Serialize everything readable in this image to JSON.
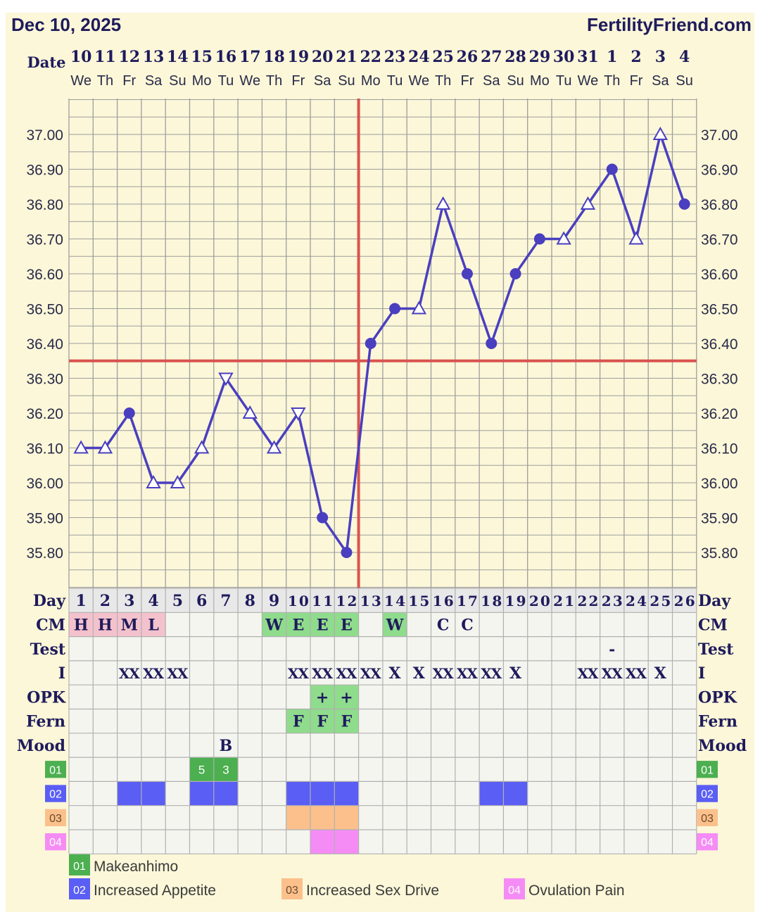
{
  "header": {
    "date": "Dec 10, 2025",
    "site": "FertilityFriend.com"
  },
  "row_labels": {
    "date": "Date",
    "day": "Day",
    "cm": "CM",
    "test": "Test",
    "intercourse": "I",
    "opk": "OPK",
    "fern": "Fern",
    "mood": "Mood"
  },
  "colors": {
    "background": "#fbf7d8",
    "grid": "#9e9e9e",
    "line": "#4a3fbf",
    "coverline": "#d9534f",
    "ovulation_line": "#d9534f",
    "pink_cell": "#f4c2cc",
    "green_cell": "#8fdc8c",
    "symptom_01": "#4caf50",
    "symptom_02": "#5a5ef5",
    "symptom_03": "#fcc08c",
    "symptom_04": "#f58cf5",
    "text": "#1f1b5c"
  },
  "chart_data": {
    "type": "line",
    "title": "",
    "ylabel": "",
    "ylim": [
      35.7,
      37.1
    ],
    "y_ticks": [
      "37.00",
      "36.90",
      "36.80",
      "36.70",
      "36.60",
      "36.50",
      "36.40",
      "36.30",
      "36.20",
      "36.10",
      "36.00",
      "35.90",
      "35.80"
    ],
    "dates": [
      "10",
      "11",
      "12",
      "13",
      "14",
      "15",
      "16",
      "17",
      "18",
      "19",
      "20",
      "21",
      "22",
      "23",
      "24",
      "25",
      "26",
      "27",
      "28",
      "29",
      "30",
      "31",
      "1",
      "2",
      "3",
      "4"
    ],
    "weekdays": [
      "We",
      "Th",
      "Fr",
      "Sa",
      "Su",
      "Mo",
      "Tu",
      "We",
      "Th",
      "Fr",
      "Sa",
      "Su",
      "Mo",
      "Tu",
      "We",
      "Th",
      "Fr",
      "Sa",
      "Su",
      "Mo",
      "Tu",
      "We",
      "Th",
      "Fr",
      "Sa",
      "Su"
    ],
    "days": [
      "1",
      "2",
      "3",
      "4",
      "5",
      "6",
      "7",
      "8",
      "9",
      "10",
      "11",
      "12",
      "13",
      "14",
      "15",
      "16",
      "17",
      "18",
      "19",
      "20",
      "21",
      "22",
      "23",
      "24",
      "25",
      "26"
    ],
    "series": [
      {
        "values": [
          36.1,
          36.1,
          36.2,
          36.0,
          36.0,
          36.1,
          36.3,
          36.2,
          36.1,
          36.2,
          35.9,
          35.8,
          36.4,
          36.5,
          36.5,
          36.8,
          36.6,
          36.4,
          36.6,
          36.7,
          36.7,
          36.8,
          36.9,
          36.7,
          37.0,
          36.8
        ],
        "markers": [
          "triangle-up",
          "triangle-up",
          "circle",
          "triangle-up",
          "triangle-up",
          "triangle-up",
          "triangle-down",
          "triangle-up",
          "triangle-up",
          "triangle-down",
          "circle",
          "circle",
          "circle",
          "circle",
          "triangle-up",
          "triangle-up",
          "circle",
          "circle",
          "circle",
          "circle",
          "triangle-up",
          "triangle-up",
          "circle",
          "triangle-up",
          "triangle-up",
          "circle"
        ]
      }
    ],
    "coverline": 36.35,
    "ovulation_day": 12
  },
  "rows": {
    "cm": [
      "H",
      "H",
      "M",
      "L",
      "",
      "",
      "",
      "",
      "W",
      "E",
      "E",
      "E",
      "",
      "W",
      "",
      "C",
      "C",
      "",
      "",
      "",
      "",
      "",
      "",
      "",
      "",
      ""
    ],
    "cm_colors": [
      "pink",
      "pink",
      "pink",
      "pink",
      "",
      "",
      "",
      "",
      "green",
      "green",
      "green",
      "green",
      "",
      "green",
      "",
      "",
      "",
      "",
      "",
      "",
      "",
      "",
      "",
      "",
      "",
      ""
    ],
    "test": [
      "",
      "",
      "",
      "",
      "",
      "",
      "",
      "",
      "",
      "",
      "",
      "",
      "",
      "",
      "",
      "",
      "",
      "",
      "",
      "",
      "",
      "",
      "-",
      "",
      "",
      ""
    ],
    "intercourse": [
      "",
      "",
      "XX",
      "XX",
      "XX",
      "",
      "",
      "",
      "",
      "XX",
      "XX",
      "XX",
      "XX",
      "X",
      "X",
      "XX",
      "XX",
      "XX",
      "X",
      "",
      "",
      "XX",
      "XX",
      "XX",
      "X",
      ""
    ],
    "opk": [
      "",
      "",
      "",
      "",
      "",
      "",
      "",
      "",
      "",
      "",
      "+",
      "+",
      "",
      "",
      "",
      "",
      "",
      "",
      "",
      "",
      "",
      "",
      "",
      "",
      "",
      ""
    ],
    "fern": [
      "",
      "",
      "",
      "",
      "",
      "",
      "",
      "",
      "",
      "F",
      "F",
      "F",
      "",
      "",
      "",
      "",
      "",
      "",
      "",
      "",
      "",
      "",
      "",
      "",
      "",
      ""
    ],
    "mood": [
      "",
      "",
      "",
      "",
      "",
      "",
      "B",
      "",
      "",
      "",
      "",
      "",
      "",
      "",
      "",
      "",
      "",
      "",
      "",
      "",
      "",
      "",
      "",
      "",
      "",
      ""
    ]
  },
  "symptoms": [
    {
      "code": "01",
      "name": "Makeanhimo",
      "cells": [
        "",
        "",
        "",
        "",
        "",
        "5",
        "3",
        "",
        "",
        "",
        "",
        "",
        "",
        "",
        "",
        "",
        "",
        "",
        "",
        "",
        "",
        "",
        "",
        "",
        "",
        ""
      ],
      "filled": [
        6,
        7
      ]
    },
    {
      "code": "02",
      "name": "Increased Appetite",
      "cells": [],
      "filled": [
        3,
        4,
        6,
        7,
        10,
        11,
        12,
        18,
        19
      ]
    },
    {
      "code": "03",
      "name": "Increased Sex Drive",
      "cells": [],
      "filled": [
        10,
        11,
        12
      ]
    },
    {
      "code": "04",
      "name": "Ovulation Pain",
      "cells": [],
      "filled": [
        11,
        12
      ]
    }
  ]
}
